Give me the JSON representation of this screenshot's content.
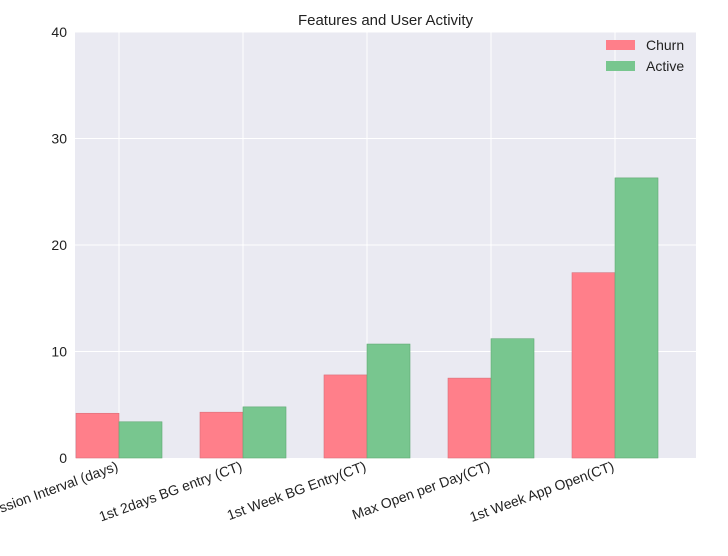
{
  "chart_data": {
    "type": "bar",
    "title": "Features and User Activity",
    "xlabel": "",
    "ylabel": "",
    "ylim": [
      0,
      40
    ],
    "yticks": [
      0,
      10,
      20,
      30,
      40
    ],
    "grid": true,
    "legend_position": "top-right",
    "categories": [
      "Session Interval (days)",
      "1st 2days BG entry (CT)",
      "1st Week BG Entry(CT)",
      "Max Open per Day(CT)",
      "1st Week App Open(CT)"
    ],
    "series": [
      {
        "name": "Churn",
        "color": "#ff7f8a",
        "values": [
          4.2,
          4.3,
          7.8,
          7.5,
          17.4
        ]
      },
      {
        "name": "Active",
        "color": "#78c68f",
        "values": [
          3.4,
          4.8,
          10.7,
          11.2,
          26.3
        ]
      }
    ]
  }
}
